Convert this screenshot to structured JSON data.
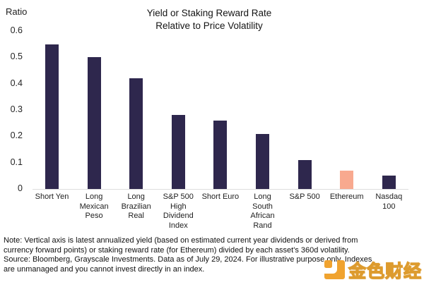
{
  "chart_data": {
    "type": "bar",
    "title_lines": [
      "Yield or Staking Reward Rate",
      "Relative to Price Volatility"
    ],
    "ylabel": "Ratio",
    "ylim": [
      0,
      0.6
    ],
    "yticks": [
      0.6,
      0.5,
      0.4,
      0.3,
      0.2,
      0.1,
      0
    ],
    "ytick_labels": [
      "0.6",
      "0.5",
      "0.4",
      "0.3",
      "0.2",
      "0.1",
      "0"
    ],
    "grid": "baseline-only",
    "legend": "none",
    "categories": [
      "Short Yen",
      "Long Mexican Peso",
      "Long Brazilian Real",
      "S&P 500 High Dividend Index",
      "Short Euro",
      "Long South African Rand",
      "S&P 500",
      "Ethereum",
      "Nasdaq 100"
    ],
    "category_lines": [
      [
        "Short Yen"
      ],
      [
        "Long",
        "Mexican",
        "Peso"
      ],
      [
        "Long",
        "Brazilian",
        "Real"
      ],
      [
        "S&P 500",
        "High",
        "Dividend",
        "Index"
      ],
      [
        "Short Euro"
      ],
      [
        "Long",
        "South",
        "African",
        "Rand"
      ],
      [
        "S&P 500"
      ],
      [
        "Ethereum"
      ],
      [
        "Nasdaq",
        "100"
      ]
    ],
    "values": [
      0.55,
      0.5,
      0.42,
      0.28,
      0.26,
      0.21,
      0.11,
      0.07,
      0.05
    ],
    "bar_color_default": "#2e274d",
    "bar_color_highlight": "#f8a98f",
    "highlight_category": "Ethereum",
    "highlight_index": 7
  },
  "notes": {
    "lines": [
      "Note: Vertical axis is latest annualized yield (based on estimated current year dividends or derived from",
      "currency forward points) or staking reward rate (for Ethereum) divided by each asset's 360d volatility.",
      "Source: Bloomberg, Grayscale Investments. Data as of July 29, 2024. For illustrative purpose only. Indexes",
      "are unmanaged and you cannot invest directly in an index."
    ]
  },
  "watermark": {
    "brand_text": "金色财经",
    "icon": "jinse-finance-logo",
    "icon_color": "#f0a32f",
    "text_fill_color": "#fffdf8",
    "text_outline_color": "#dd9b2e"
  }
}
